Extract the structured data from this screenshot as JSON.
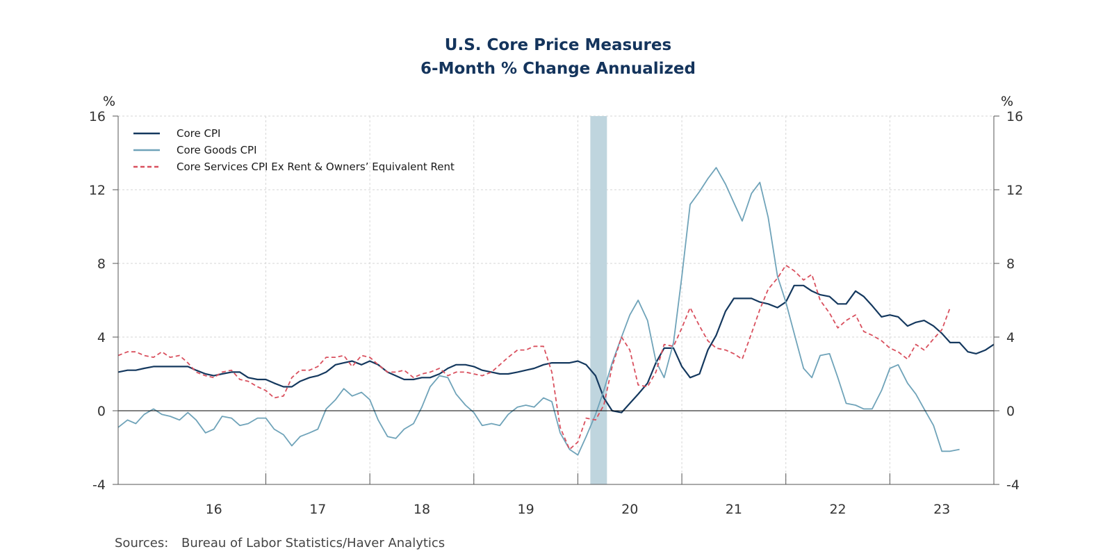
{
  "chart_data": {
    "type": "line",
    "title": "U.S. Core Price Measures",
    "subtitle": "6-Month % Change Annualized",
    "ylabel_left": "%",
    "ylabel_right": "%",
    "ylim": [
      -4,
      16
    ],
    "yticks": [
      -4,
      0,
      4,
      8,
      12,
      16
    ],
    "xlim": [
      2015.58,
      2024.0
    ],
    "x_tick_labels": [
      "16",
      "17",
      "18",
      "19",
      "20",
      "21",
      "22",
      "23"
    ],
    "x_tick_label_positions": [
      2016.5,
      2017.5,
      2018.5,
      2019.5,
      2020.5,
      2021.5,
      2022.5,
      2023.5
    ],
    "x_tick_marks": [
      2017,
      2018,
      2019,
      2020,
      2021,
      2022,
      2023,
      2024
    ],
    "recession": {
      "start": 2020.12,
      "end": 2020.28
    },
    "zero_line": 0,
    "grid": true,
    "legend_placement": "top-left",
    "series": [
      {
        "name": "Core CPI",
        "color": "#14385e",
        "dash": "solid",
        "points": [
          [
            2015.58,
            2.1
          ],
          [
            2015.67,
            2.2
          ],
          [
            2015.75,
            2.2
          ],
          [
            2015.83,
            2.3
          ],
          [
            2015.92,
            2.4
          ],
          [
            2016.0,
            2.4
          ],
          [
            2016.08,
            2.4
          ],
          [
            2016.17,
            2.4
          ],
          [
            2016.25,
            2.4
          ],
          [
            2016.33,
            2.2
          ],
          [
            2016.42,
            2.0
          ],
          [
            2016.5,
            1.9
          ],
          [
            2016.58,
            2.0
          ],
          [
            2016.67,
            2.1
          ],
          [
            2016.75,
            2.1
          ],
          [
            2016.83,
            1.8
          ],
          [
            2016.92,
            1.7
          ],
          [
            2017.0,
            1.7
          ],
          [
            2017.08,
            1.5
          ],
          [
            2017.17,
            1.3
          ],
          [
            2017.25,
            1.3
          ],
          [
            2017.33,
            1.6
          ],
          [
            2017.42,
            1.8
          ],
          [
            2017.5,
            1.9
          ],
          [
            2017.58,
            2.1
          ],
          [
            2017.67,
            2.5
          ],
          [
            2017.75,
            2.6
          ],
          [
            2017.83,
            2.7
          ],
          [
            2017.92,
            2.5
          ],
          [
            2018.0,
            2.7
          ],
          [
            2018.08,
            2.5
          ],
          [
            2018.17,
            2.1
          ],
          [
            2018.25,
            1.9
          ],
          [
            2018.33,
            1.7
          ],
          [
            2018.42,
            1.7
          ],
          [
            2018.5,
            1.8
          ],
          [
            2018.58,
            1.8
          ],
          [
            2018.67,
            2.0
          ],
          [
            2018.75,
            2.3
          ],
          [
            2018.83,
            2.5
          ],
          [
            2018.92,
            2.5
          ],
          [
            2019.0,
            2.4
          ],
          [
            2019.08,
            2.2
          ],
          [
            2019.17,
            2.1
          ],
          [
            2019.25,
            2.0
          ],
          [
            2019.33,
            2.0
          ],
          [
            2019.42,
            2.1
          ],
          [
            2019.5,
            2.2
          ],
          [
            2019.58,
            2.3
          ],
          [
            2019.67,
            2.5
          ],
          [
            2019.75,
            2.6
          ],
          [
            2019.83,
            2.6
          ],
          [
            2019.92,
            2.6
          ],
          [
            2020.0,
            2.7
          ],
          [
            2020.08,
            2.5
          ],
          [
            2020.17,
            1.9
          ],
          [
            2020.25,
            0.7
          ],
          [
            2020.33,
            0.0
          ],
          [
            2020.42,
            -0.1
          ],
          [
            2020.5,
            0.4
          ],
          [
            2020.58,
            0.9
          ],
          [
            2020.67,
            1.5
          ],
          [
            2020.75,
            2.6
          ],
          [
            2020.83,
            3.4
          ],
          [
            2020.92,
            3.4
          ],
          [
            2021.0,
            2.4
          ],
          [
            2021.08,
            1.8
          ],
          [
            2021.17,
            2.0
          ],
          [
            2021.25,
            3.3
          ],
          [
            2021.33,
            4.1
          ],
          [
            2021.42,
            5.4
          ],
          [
            2021.5,
            6.1
          ],
          [
            2021.58,
            6.1
          ],
          [
            2021.67,
            6.1
          ],
          [
            2021.75,
            5.9
          ],
          [
            2021.83,
            5.8
          ],
          [
            2021.92,
            5.6
          ],
          [
            2022.0,
            5.9
          ],
          [
            2022.08,
            6.8
          ],
          [
            2022.17,
            6.8
          ],
          [
            2022.25,
            6.5
          ],
          [
            2022.33,
            6.3
          ],
          [
            2022.42,
            6.2
          ],
          [
            2022.5,
            5.8
          ],
          [
            2022.58,
            5.8
          ],
          [
            2022.67,
            6.5
          ],
          [
            2022.75,
            6.2
          ],
          [
            2022.83,
            5.7
          ],
          [
            2022.92,
            5.1
          ],
          [
            2023.0,
            5.2
          ],
          [
            2023.08,
            5.1
          ],
          [
            2023.17,
            4.6
          ],
          [
            2023.25,
            4.8
          ],
          [
            2023.33,
            4.9
          ],
          [
            2023.42,
            4.6
          ],
          [
            2023.5,
            4.2
          ],
          [
            2023.58,
            3.7
          ],
          [
            2023.67,
            3.7
          ],
          [
            2023.75,
            3.2
          ],
          [
            2023.83,
            3.1
          ],
          [
            2023.92,
            3.3
          ],
          [
            2024.0,
            3.6
          ]
        ]
      },
      {
        "name": "Core Goods CPI",
        "color": "#6fa3b9",
        "dash": "solid",
        "points": [
          [
            2015.58,
            -0.9
          ],
          [
            2015.67,
            -0.5
          ],
          [
            2015.75,
            -0.7
          ],
          [
            2015.83,
            -0.2
          ],
          [
            2015.92,
            0.1
          ],
          [
            2016.0,
            -0.2
          ],
          [
            2016.08,
            -0.3
          ],
          [
            2016.17,
            -0.5
          ],
          [
            2016.25,
            -0.1
          ],
          [
            2016.33,
            -0.5
          ],
          [
            2016.42,
            -1.2
          ],
          [
            2016.5,
            -1.0
          ],
          [
            2016.58,
            -0.3
          ],
          [
            2016.67,
            -0.4
          ],
          [
            2016.75,
            -0.8
          ],
          [
            2016.83,
            -0.7
          ],
          [
            2016.92,
            -0.4
          ],
          [
            2017.0,
            -0.4
          ],
          [
            2017.08,
            -1.0
          ],
          [
            2017.17,
            -1.3
          ],
          [
            2017.25,
            -1.9
          ],
          [
            2017.33,
            -1.4
          ],
          [
            2017.42,
            -1.2
          ],
          [
            2017.5,
            -1.0
          ],
          [
            2017.58,
            0.1
          ],
          [
            2017.67,
            0.6
          ],
          [
            2017.75,
            1.2
          ],
          [
            2017.83,
            0.8
          ],
          [
            2017.92,
            1.0
          ],
          [
            2018.0,
            0.6
          ],
          [
            2018.08,
            -0.5
          ],
          [
            2018.17,
            -1.4
          ],
          [
            2018.25,
            -1.5
          ],
          [
            2018.33,
            -1.0
          ],
          [
            2018.42,
            -0.7
          ],
          [
            2018.5,
            0.2
          ],
          [
            2018.58,
            1.3
          ],
          [
            2018.67,
            1.9
          ],
          [
            2018.75,
            1.8
          ],
          [
            2018.83,
            0.9
          ],
          [
            2018.92,
            0.3
          ],
          [
            2019.0,
            -0.1
          ],
          [
            2019.08,
            -0.8
          ],
          [
            2019.17,
            -0.7
          ],
          [
            2019.25,
            -0.8
          ],
          [
            2019.33,
            -0.2
          ],
          [
            2019.42,
            0.2
          ],
          [
            2019.5,
            0.3
          ],
          [
            2019.58,
            0.2
          ],
          [
            2019.67,
            0.7
          ],
          [
            2019.75,
            0.5
          ],
          [
            2019.83,
            -1.2
          ],
          [
            2019.92,
            -2.1
          ],
          [
            2020.0,
            -2.4
          ],
          [
            2020.08,
            -1.4
          ],
          [
            2020.17,
            -0.2
          ],
          [
            2020.25,
            1.1
          ],
          [
            2020.33,
            2.6
          ],
          [
            2020.42,
            4.0
          ],
          [
            2020.5,
            5.2
          ],
          [
            2020.58,
            6.0
          ],
          [
            2020.67,
            4.9
          ],
          [
            2020.75,
            2.7
          ],
          [
            2020.83,
            1.8
          ],
          [
            2020.92,
            3.7
          ],
          [
            2021.0,
            7.3
          ],
          [
            2021.08,
            11.2
          ],
          [
            2021.17,
            11.9
          ],
          [
            2021.25,
            12.6
          ],
          [
            2021.33,
            13.2
          ],
          [
            2021.42,
            12.3
          ],
          [
            2021.5,
            11.3
          ],
          [
            2021.58,
            10.3
          ],
          [
            2021.67,
            11.8
          ],
          [
            2021.75,
            12.4
          ],
          [
            2021.83,
            10.5
          ],
          [
            2021.92,
            7.3
          ],
          [
            2022.0,
            5.9
          ],
          [
            2022.08,
            4.2
          ],
          [
            2022.17,
            2.3
          ],
          [
            2022.25,
            1.8
          ],
          [
            2022.33,
            3.0
          ],
          [
            2022.42,
            3.1
          ],
          [
            2022.5,
            1.8
          ],
          [
            2022.58,
            0.4
          ],
          [
            2022.67,
            0.3
          ],
          [
            2022.75,
            0.1
          ],
          [
            2022.83,
            0.1
          ],
          [
            2022.92,
            1.1
          ],
          [
            2023.0,
            2.3
          ],
          [
            2023.08,
            2.5
          ],
          [
            2023.17,
            1.5
          ],
          [
            2023.25,
            0.9
          ],
          [
            2023.33,
            0.1
          ],
          [
            2023.42,
            -0.8
          ],
          [
            2023.5,
            -2.2
          ],
          [
            2023.58,
            -2.2
          ],
          [
            2023.67,
            -2.1
          ]
        ]
      },
      {
        "name": "Core Services CPI Ex Rent & Owners’ Equivalent Rent",
        "color": "#d9505e",
        "dash": "dashed",
        "points": [
          [
            2015.58,
            3.0
          ],
          [
            2015.67,
            3.2
          ],
          [
            2015.75,
            3.2
          ],
          [
            2015.83,
            3.0
          ],
          [
            2015.92,
            2.9
          ],
          [
            2016.0,
            3.2
          ],
          [
            2016.08,
            2.9
          ],
          [
            2016.17,
            3.0
          ],
          [
            2016.25,
            2.6
          ],
          [
            2016.33,
            2.1
          ],
          [
            2016.42,
            1.9
          ],
          [
            2016.5,
            1.8
          ],
          [
            2016.58,
            2.1
          ],
          [
            2016.67,
            2.2
          ],
          [
            2016.75,
            1.7
          ],
          [
            2016.83,
            1.6
          ],
          [
            2016.92,
            1.3
          ],
          [
            2017.0,
            1.1
          ],
          [
            2017.08,
            0.7
          ],
          [
            2017.17,
            0.8
          ],
          [
            2017.25,
            1.8
          ],
          [
            2017.33,
            2.2
          ],
          [
            2017.42,
            2.2
          ],
          [
            2017.5,
            2.4
          ],
          [
            2017.58,
            2.9
          ],
          [
            2017.67,
            2.9
          ],
          [
            2017.75,
            3.0
          ],
          [
            2017.83,
            2.4
          ],
          [
            2017.92,
            3.0
          ],
          [
            2018.0,
            2.9
          ],
          [
            2018.08,
            2.5
          ],
          [
            2018.17,
            2.1
          ],
          [
            2018.25,
            2.1
          ],
          [
            2018.33,
            2.2
          ],
          [
            2018.42,
            1.8
          ],
          [
            2018.5,
            2.0
          ],
          [
            2018.58,
            2.1
          ],
          [
            2018.67,
            2.3
          ],
          [
            2018.75,
            1.9
          ],
          [
            2018.83,
            2.1
          ],
          [
            2018.92,
            2.1
          ],
          [
            2019.0,
            2.0
          ],
          [
            2019.08,
            1.9
          ],
          [
            2019.17,
            2.1
          ],
          [
            2019.25,
            2.5
          ],
          [
            2019.33,
            2.9
          ],
          [
            2019.42,
            3.3
          ],
          [
            2019.5,
            3.3
          ],
          [
            2019.58,
            3.5
          ],
          [
            2019.67,
            3.5
          ],
          [
            2019.75,
            2.1
          ],
          [
            2019.83,
            -0.9
          ],
          [
            2019.92,
            -2.1
          ],
          [
            2020.0,
            -1.7
          ],
          [
            2020.08,
            -0.4
          ],
          [
            2020.17,
            -0.5
          ],
          [
            2020.25,
            0.3
          ],
          [
            2020.33,
            2.4
          ],
          [
            2020.42,
            4.0
          ],
          [
            2020.5,
            3.3
          ],
          [
            2020.58,
            1.4
          ],
          [
            2020.67,
            1.3
          ],
          [
            2020.75,
            2.1
          ],
          [
            2020.83,
            3.6
          ],
          [
            2020.92,
            3.5
          ],
          [
            2021.0,
            4.5
          ],
          [
            2021.08,
            5.6
          ],
          [
            2021.17,
            4.6
          ],
          [
            2021.25,
            3.8
          ],
          [
            2021.33,
            3.4
          ],
          [
            2021.42,
            3.3
          ],
          [
            2021.5,
            3.1
          ],
          [
            2021.58,
            2.8
          ],
          [
            2021.67,
            4.2
          ],
          [
            2021.75,
            5.5
          ],
          [
            2021.83,
            6.6
          ],
          [
            2021.92,
            7.2
          ],
          [
            2022.0,
            7.9
          ],
          [
            2022.08,
            7.6
          ],
          [
            2022.17,
            7.1
          ],
          [
            2022.25,
            7.4
          ],
          [
            2022.33,
            6.0
          ],
          [
            2022.42,
            5.3
          ],
          [
            2022.5,
            4.5
          ],
          [
            2022.58,
            4.9
          ],
          [
            2022.67,
            5.2
          ],
          [
            2022.75,
            4.3
          ],
          [
            2022.83,
            4.1
          ],
          [
            2022.92,
            3.8
          ],
          [
            2023.0,
            3.4
          ],
          [
            2023.08,
            3.2
          ],
          [
            2023.17,
            2.8
          ],
          [
            2023.25,
            3.6
          ],
          [
            2023.33,
            3.3
          ],
          [
            2023.42,
            3.9
          ],
          [
            2023.5,
            4.4
          ],
          [
            2023.58,
            5.6
          ]
        ]
      }
    ],
    "source_label": "Sources:",
    "source_text": "Bureau of Labor Statistics/Haver Analytics"
  }
}
